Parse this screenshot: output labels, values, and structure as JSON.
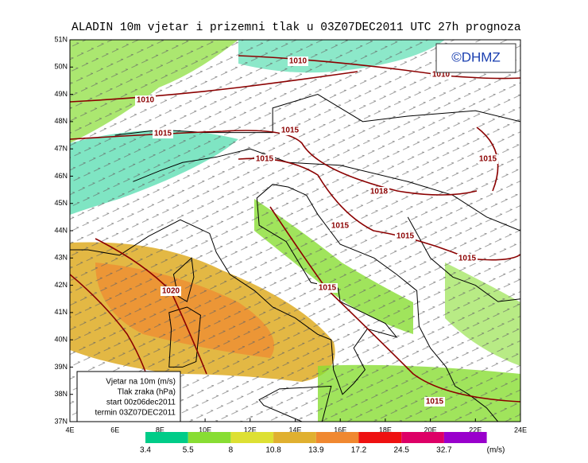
{
  "header": {
    "title": "ALADIN 10m vjetar i prizemni tlak u 03Z07DEC2011 UTC 27h prognoza"
  },
  "logo": {
    "text": "©DHMZ"
  },
  "map": {
    "lat_labels": [
      "51N",
      "50N",
      "49N",
      "48N",
      "47N",
      "46N",
      "45N",
      "44N",
      "43N",
      "42N",
      "41N",
      "40N",
      "39N",
      "38N",
      "37N"
    ],
    "lon_labels": [
      "4E",
      "6E",
      "8E",
      "10E",
      "12E",
      "14E",
      "16E",
      "18E",
      "20E",
      "22E",
      "24E"
    ],
    "isobar_labels": [
      "1010",
      "1010",
      "1010",
      "1015",
      "1015",
      "1015",
      "1015",
      "1015",
      "1015",
      "1015",
      "1015",
      "1015",
      "1018",
      "1020"
    ]
  },
  "info_box": {
    "lines": [
      "Vjetar na 10m (m/s)",
      "Tlak zraka (hPa)",
      "start 00z06dec2011",
      "termin 03Z07DEC2011"
    ]
  },
  "colorbar": {
    "labels": [
      "3.4",
      "5.5",
      "8",
      "10.8",
      "13.9",
      "17.2",
      "24.5",
      "32.7"
    ],
    "unit": "(m/s)",
    "colors": [
      "#00cc88",
      "#88dd33",
      "#dde033",
      "#e0b030",
      "#f08830",
      "#ee1111",
      "#dd0066",
      "#9900cc"
    ]
  }
}
